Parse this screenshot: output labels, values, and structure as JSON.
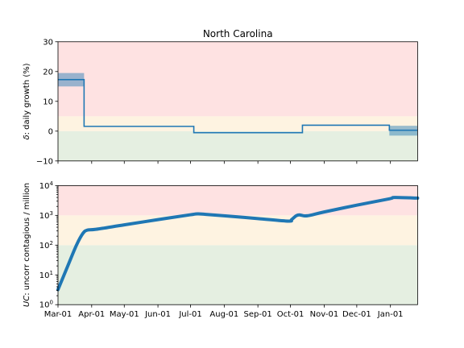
{
  "chart_data": [
    {
      "type": "step",
      "title": "North Carolina",
      "ylabel_prefix": "δ",
      "ylabel_rest": ": daily growth (%)",
      "ylim": [
        -10,
        30
      ],
      "yticks": [
        -10,
        0,
        10,
        20,
        30
      ],
      "yticklabels": [
        "−10",
        "0",
        "10",
        "20",
        "30"
      ],
      "xrange": [
        "2020-03-01",
        "2021-01-26"
      ],
      "bands": [
        {
          "from": -10,
          "to": 0,
          "color": "#e5efe1"
        },
        {
          "from": 0,
          "to": 5,
          "color": "#fef3e1"
        },
        {
          "from": 5,
          "to": 30,
          "color": "#fee2e2"
        }
      ],
      "line_color": "#1f77b4",
      "series": [
        {
          "points": [
            {
              "x": "2020-03-01",
              "y": 17.3
            },
            {
              "x": "2020-03-25",
              "y": 17.3
            },
            {
              "x": "2020-03-25",
              "y": 1.6
            },
            {
              "x": "2020-07-04",
              "y": 1.6
            },
            {
              "x": "2020-07-04",
              "y": -0.5
            },
            {
              "x": "2020-10-12",
              "y": -0.5
            },
            {
              "x": "2020-10-12",
              "y": 2.0
            },
            {
              "x": "2020-12-31",
              "y": 2.0
            },
            {
              "x": "2020-12-31",
              "y": 0.3
            },
            {
              "x": "2021-01-26",
              "y": 0.3
            }
          ],
          "ci": [
            {
              "x0": "2020-03-01",
              "x1": "2020-03-25",
              "lo": 15.0,
              "hi": 19.5
            },
            {
              "x0": "2020-12-31",
              "x1": "2021-01-26",
              "lo": -1.5,
              "hi": 1.8
            }
          ]
        }
      ]
    },
    {
      "type": "line",
      "ylabel_prefix": "UC",
      "ylabel_rest": ": uncorr contagious / million",
      "yscale": "log",
      "ylim": [
        1,
        10000
      ],
      "ytick_exponents": [
        "0",
        "1",
        "2",
        "3",
        "4"
      ],
      "xrange": [
        "2020-03-01",
        "2021-01-26"
      ],
      "xticks": [
        "2020-03-01",
        "2020-04-01",
        "2020-05-01",
        "2020-06-01",
        "2020-07-01",
        "2020-08-01",
        "2020-09-01",
        "2020-10-01",
        "2020-11-01",
        "2020-12-01",
        "2021-01-01"
      ],
      "xticklabels": [
        "Mar-01",
        "Apr-01",
        "May-01",
        "Jun-01",
        "Jul-01",
        "Aug-01",
        "Sep-01",
        "Oct-01",
        "Nov-01",
        "Dec-01",
        "Jan-01"
      ],
      "bands": [
        {
          "from": 1,
          "to": 100,
          "color": "#e5efe1"
        },
        {
          "from": 100,
          "to": 1000,
          "color": "#fef3e1"
        },
        {
          "from": 1000,
          "to": 10000,
          "color": "#fee2e2"
        }
      ],
      "line_color": "#1f77b4",
      "series": [
        {
          "points": [
            {
              "x": "2020-03-01",
              "y": 3.2
            },
            {
              "x": "2020-03-10",
              "y": 20
            },
            {
              "x": "2020-03-18",
              "y": 100
            },
            {
              "x": "2020-03-24",
              "y": 250
            },
            {
              "x": "2020-03-28",
              "y": 320
            },
            {
              "x": "2020-04-05",
              "y": 340
            },
            {
              "x": "2020-05-01",
              "y": 480
            },
            {
              "x": "2020-06-01",
              "y": 720
            },
            {
              "x": "2020-07-01",
              "y": 1050
            },
            {
              "x": "2020-07-08",
              "y": 1120
            },
            {
              "x": "2020-07-15",
              "y": 1080
            },
            {
              "x": "2020-08-01",
              "y": 970
            },
            {
              "x": "2020-09-01",
              "y": 780
            },
            {
              "x": "2020-09-29",
              "y": 640
            },
            {
              "x": "2020-10-02",
              "y": 720
            },
            {
              "x": "2020-10-06",
              "y": 960
            },
            {
              "x": "2020-10-09",
              "y": 1040
            },
            {
              "x": "2020-10-14",
              "y": 960
            },
            {
              "x": "2020-10-19",
              "y": 1000
            },
            {
              "x": "2020-11-01",
              "y": 1300
            },
            {
              "x": "2020-12-01",
              "y": 2200
            },
            {
              "x": "2020-12-31",
              "y": 3600
            },
            {
              "x": "2021-01-05",
              "y": 4000
            },
            {
              "x": "2021-01-26",
              "y": 3800
            }
          ]
        }
      ]
    }
  ]
}
